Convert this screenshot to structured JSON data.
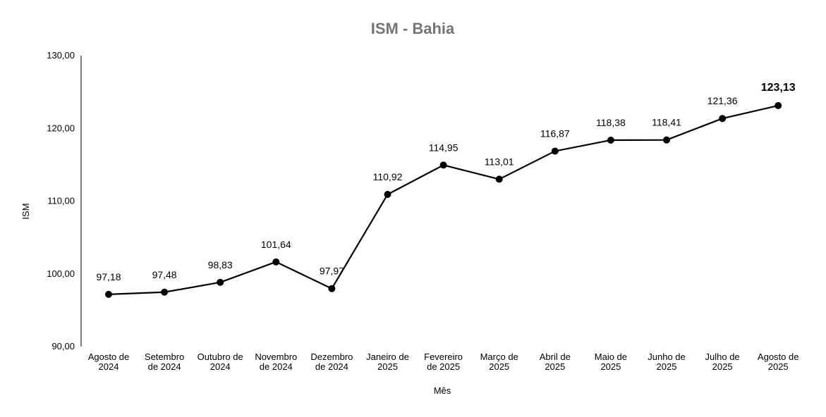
{
  "chart_data": {
    "type": "line",
    "title": "ISM - Bahia",
    "xlabel": "Mês",
    "ylabel": "ISM",
    "ylim": [
      90,
      130
    ],
    "yticks": [
      "90,00",
      "100,00",
      "110,00",
      "120,00",
      "130,00"
    ],
    "ytick_values": [
      90,
      100,
      110,
      120,
      130
    ],
    "grid": false,
    "categories": [
      [
        "Agosto de",
        "2024"
      ],
      [
        "Setembro",
        "de 2024"
      ],
      [
        "Outubro de",
        "2024"
      ],
      [
        "Novembro",
        "de 2024"
      ],
      [
        "Dezembro",
        "de 2024"
      ],
      [
        "Janeiro de",
        "2025"
      ],
      [
        "Fevereiro",
        "de 2025"
      ],
      [
        "Março de",
        "2025"
      ],
      [
        "Abril de",
        "2025"
      ],
      [
        "Maio de",
        "2025"
      ],
      [
        "Junho de",
        "2025"
      ],
      [
        "Julho de",
        "2025"
      ],
      [
        "Agosto de",
        "2025"
      ]
    ],
    "series": [
      {
        "values": [
          97.18,
          97.48,
          98.83,
          101.64,
          97.97,
          110.92,
          114.95,
          113.01,
          116.87,
          118.38,
          118.41,
          121.36,
          123.13
        ],
        "labels": [
          "97,18",
          "97,48",
          "98,83",
          "101,64",
          "97,97",
          "110,92",
          "114,95",
          "113,01",
          "116,87",
          "118,38",
          "118,41",
          "121,36",
          "123,13"
        ],
        "color": "#000000"
      }
    ]
  }
}
